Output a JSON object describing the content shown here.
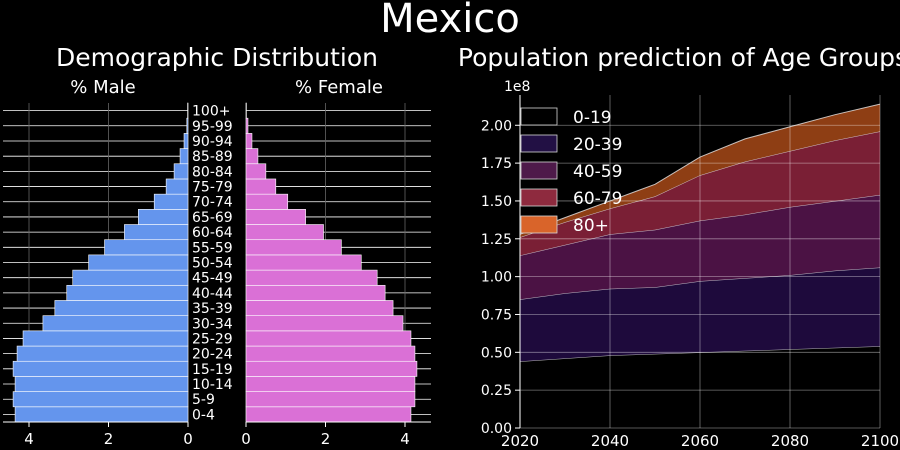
{
  "title": "Mexico",
  "chart_data": [
    {
      "type": "bar",
      "orientation": "horizontal",
      "title": "Demographic Distribution",
      "left_label": "% Male",
      "right_label": "% Female",
      "categories": [
        "0-4",
        "5-9",
        "10-14",
        "15-19",
        "20-24",
        "25-29",
        "30-34",
        "35-39",
        "40-44",
        "45-49",
        "50-54",
        "55-59",
        "60-64",
        "65-69",
        "70-74",
        "75-79",
        "80-84",
        "85-89",
        "90-94",
        "95-99",
        "100+"
      ],
      "series": [
        {
          "name": "% Male",
          "values": [
            4.35,
            4.4,
            4.35,
            4.4,
            4.3,
            4.15,
            3.65,
            3.35,
            3.05,
            2.9,
            2.5,
            2.1,
            1.6,
            1.25,
            0.85,
            0.55,
            0.35,
            0.2,
            0.1,
            0.03,
            0.01
          ],
          "color": "#6495ED"
        },
        {
          "name": "% Female",
          "values": [
            4.15,
            4.25,
            4.25,
            4.3,
            4.25,
            4.15,
            3.95,
            3.7,
            3.5,
            3.3,
            2.9,
            2.4,
            1.95,
            1.5,
            1.05,
            0.75,
            0.5,
            0.3,
            0.15,
            0.05,
            0.01
          ],
          "color": "#DA70D6"
        }
      ],
      "male_ticks": [
        "4",
        "2",
        "0"
      ],
      "female_ticks": [
        "0",
        "2",
        "4"
      ],
      "xlim": [
        0,
        4.6
      ]
    },
    {
      "type": "area",
      "stacked": true,
      "title": "Population prediction of Age Groups",
      "y_offset_label": "1e8",
      "x": [
        2020,
        2030,
        2040,
        2050,
        2060,
        2070,
        2080,
        2090,
        2100
      ],
      "xlim": [
        2020,
        2100
      ],
      "ylim": [
        0,
        2.2
      ],
      "x_ticks": [
        "2020",
        "2040",
        "2060",
        "2080",
        "2100"
      ],
      "y_ticks": [
        "0.00",
        "0.25",
        "0.50",
        "0.75",
        "1.00",
        "1.25",
        "1.50",
        "1.75",
        "2.00"
      ],
      "grid": true,
      "legend_position": "top-left",
      "series": [
        {
          "name": "0-19",
          "values": [
            0.44,
            0.46,
            0.48,
            0.49,
            0.5,
            0.51,
            0.52,
            0.53,
            0.54
          ],
          "color": "#000000"
        },
        {
          "name": "20-39",
          "values": [
            0.41,
            0.43,
            0.44,
            0.44,
            0.47,
            0.48,
            0.49,
            0.51,
            0.52
          ],
          "color": "#1e0a3c"
        },
        {
          "name": "40-59",
          "values": [
            0.29,
            0.32,
            0.36,
            0.38,
            0.4,
            0.42,
            0.45,
            0.46,
            0.48
          ],
          "color": "#4b1244"
        },
        {
          "name": "60-79",
          "values": [
            0.12,
            0.15,
            0.17,
            0.22,
            0.3,
            0.35,
            0.37,
            0.4,
            0.42
          ],
          "color": "#7a1f35"
        },
        {
          "name": "80+",
          "values": [
            0.02,
            0.03,
            0.05,
            0.08,
            0.12,
            0.15,
            0.16,
            0.17,
            0.18
          ],
          "color": "#8e3e14"
        }
      ],
      "legend_colors": [
        "#000000",
        "#221044",
        "#4e1a4a",
        "#8e2a3e",
        "#d9642a"
      ]
    }
  ]
}
